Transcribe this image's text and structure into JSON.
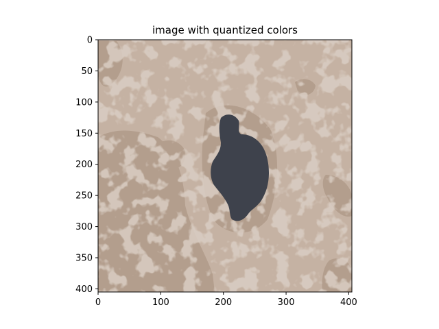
{
  "chart_data": {
    "type": "image",
    "title": "image with quantized colors",
    "xlabel": "",
    "ylabel": "",
    "xlim": [
      0,
      405
    ],
    "ylim": [
      405,
      0
    ],
    "xticks": [
      0,
      100,
      200,
      300,
      400
    ],
    "yticks": [
      0,
      50,
      100,
      150,
      200,
      250,
      300,
      350,
      400
    ],
    "xtick_labels": [
      "0",
      "100",
      "200",
      "300",
      "400"
    ],
    "ytick_labels": [
      "0",
      "50",
      "100",
      "150",
      "200",
      "250",
      "300",
      "350",
      "400"
    ],
    "grid": false,
    "palette": {
      "background": "#c5b2a3",
      "mid_tone": "#b39e8d",
      "lesion": "#3e424c"
    }
  }
}
